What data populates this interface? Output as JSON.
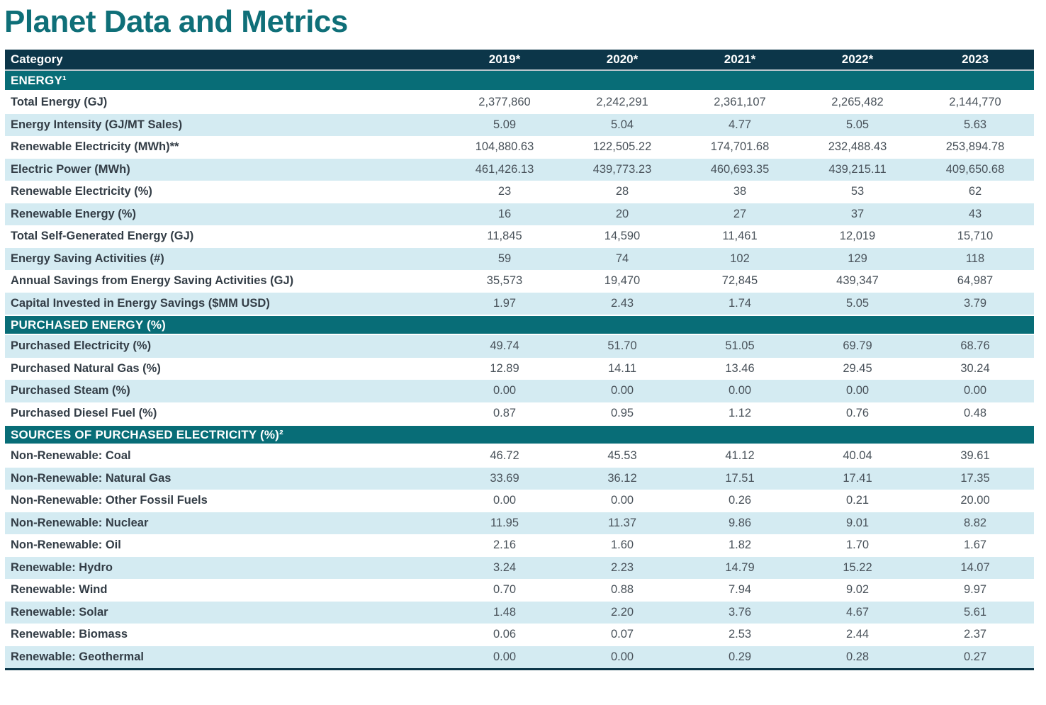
{
  "page": {
    "title": "Planet Data and Metrics"
  },
  "colors": {
    "title_teal": "#0f6f78",
    "header_navy": "#0c3649",
    "section_teal": "#086d77",
    "shaded_row_blue": "#d4ebf2",
    "header_divider": "#b9c6cc",
    "label_text": "#333d46",
    "value_text": "#49525a"
  },
  "table": {
    "columns": [
      "Category",
      "2019*",
      "2020*",
      "2021*",
      "2022*",
      "2023"
    ],
    "sections": [
      {
        "header": "ENERGY¹",
        "rows": [
          {
            "label": "Total Energy (GJ)",
            "values": [
              "2,377,860",
              "2,242,291",
              "2,361,107",
              "2,265,482",
              "2,144,770"
            ],
            "shaded": false
          },
          {
            "label": "Energy Intensity (GJ/MT Sales)",
            "values": [
              "5.09",
              "5.04",
              "4.77",
              "5.05",
              "5.63"
            ],
            "shaded": true
          },
          {
            "label": "Renewable Electricity (MWh)**",
            "values": [
              "104,880.63",
              "122,505.22",
              "174,701.68",
              "232,488.43",
              "253,894.78"
            ],
            "shaded": false
          },
          {
            "label": "Electric Power (MWh)",
            "values": [
              "461,426.13",
              "439,773.23",
              "460,693.35",
              "439,215.11",
              "409,650.68"
            ],
            "shaded": true
          },
          {
            "label": "Renewable Electricity (%)",
            "values": [
              "23",
              "28",
              "38",
              "53",
              "62"
            ],
            "shaded": false
          },
          {
            "label": "Renewable Energy (%)",
            "values": [
              "16",
              "20",
              "27",
              "37",
              "43"
            ],
            "shaded": true
          },
          {
            "label": "Total Self-Generated Energy (GJ)",
            "values": [
              "11,845",
              "14,590",
              "11,461",
              "12,019",
              "15,710"
            ],
            "shaded": false
          },
          {
            "label": "Energy Saving Activities (#)",
            "values": [
              "59",
              "74",
              "102",
              "129",
              "118"
            ],
            "shaded": true
          },
          {
            "label": "Annual Savings from Energy Saving Activities (GJ)",
            "values": [
              "35,573",
              "19,470",
              "72,845",
              "439,347",
              "64,987"
            ],
            "shaded": false
          },
          {
            "label": "Capital Invested in Energy Savings ($MM USD)",
            "values": [
              "1.97",
              "2.43",
              "1.74",
              "5.05",
              "3.79"
            ],
            "shaded": true
          }
        ]
      },
      {
        "header": "PURCHASED ENERGY (%)",
        "rows": [
          {
            "label": "Purchased Electricity (%)",
            "values": [
              "49.74",
              "51.70",
              "51.05",
              "69.79",
              "68.76"
            ],
            "shaded": true
          },
          {
            "label": "Purchased Natural Gas (%)",
            "values": [
              "12.89",
              "14.11",
              "13.46",
              "29.45",
              "30.24"
            ],
            "shaded": false
          },
          {
            "label": "Purchased Steam (%)",
            "values": [
              "0.00",
              "0.00",
              "0.00",
              "0.00",
              "0.00"
            ],
            "shaded": true
          },
          {
            "label": "Purchased Diesel Fuel (%)",
            "values": [
              "0.87",
              "0.95",
              "1.12",
              "0.76",
              "0.48"
            ],
            "shaded": false
          }
        ]
      },
      {
        "header": "SOURCES OF PURCHASED ELECTRICITY (%)²",
        "rows": [
          {
            "label": "Non-Renewable: Coal",
            "values": [
              "46.72",
              "45.53",
              "41.12",
              "40.04",
              "39.61"
            ],
            "shaded": false
          },
          {
            "label": "Non-Renewable: Natural Gas",
            "values": [
              "33.69",
              "36.12",
              "17.51",
              "17.41",
              "17.35"
            ],
            "shaded": true
          },
          {
            "label": "Non-Renewable: Other Fossil Fuels",
            "values": [
              "0.00",
              "0.00",
              "0.26",
              "0.21",
              "20.00"
            ],
            "shaded": false
          },
          {
            "label": "Non-Renewable: Nuclear",
            "values": [
              "11.95",
              "11.37",
              "9.86",
              "9.01",
              "8.82"
            ],
            "shaded": true
          },
          {
            "label": "Non-Renewable: Oil",
            "values": [
              "2.16",
              "1.60",
              "1.82",
              "1.70",
              "1.67"
            ],
            "shaded": false
          },
          {
            "label": "Renewable: Hydro",
            "values": [
              "3.24",
              "2.23",
              "14.79",
              "15.22",
              "14.07"
            ],
            "shaded": true
          },
          {
            "label": "Renewable: Wind",
            "values": [
              "0.70",
              "0.88",
              "7.94",
              "9.02",
              "9.97"
            ],
            "shaded": false
          },
          {
            "label": "Renewable: Solar",
            "values": [
              "1.48",
              "2.20",
              "3.76",
              "4.67",
              "5.61"
            ],
            "shaded": true
          },
          {
            "label": "Renewable: Biomass",
            "values": [
              "0.06",
              "0.07",
              "2.53",
              "2.44",
              "2.37"
            ],
            "shaded": false
          },
          {
            "label": "Renewable: Geothermal",
            "values": [
              "0.00",
              "0.00",
              "0.29",
              "0.28",
              "0.27"
            ],
            "shaded": true
          }
        ]
      }
    ]
  }
}
